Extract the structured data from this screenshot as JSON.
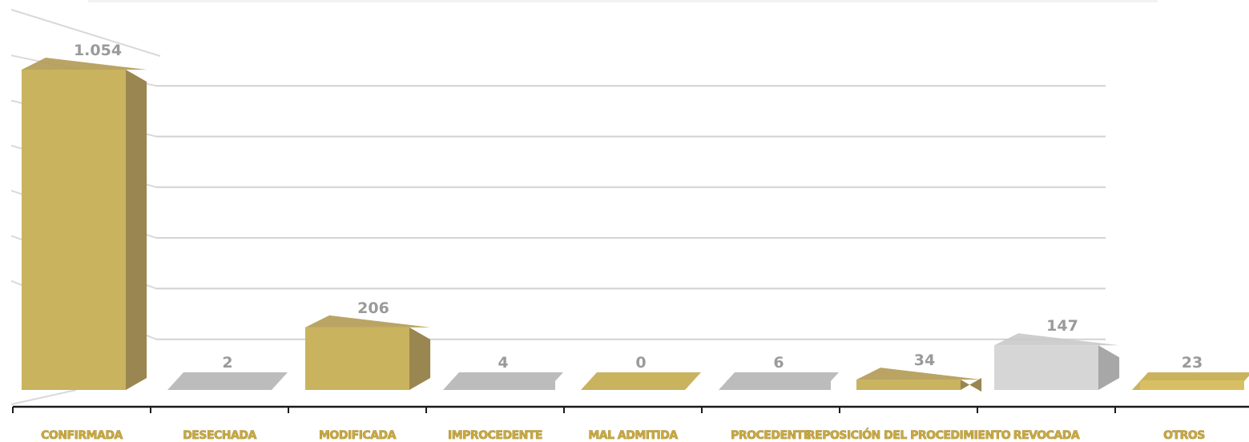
{
  "chart_data": {
    "type": "bar",
    "style": "3d-column",
    "categories": [
      "CONFIRMADA",
      "DESECHADA",
      "MODIFICADA",
      "IMPROCEDENTE",
      "MAL ADMITIDA",
      "PROCEDENTE",
      "REPOSICIÓN DEL PROCEDIMIENTO",
      "REVOCADA",
      "OTROS"
    ],
    "values": [
      1054,
      2,
      206,
      4,
      0,
      6,
      34,
      147,
      23
    ],
    "value_labels": [
      "1.054",
      "2",
      "206",
      "4",
      "0",
      "6",
      "34",
      "147",
      "23"
    ],
    "title": "",
    "xlabel": "",
    "ylabel": "",
    "ylim": [
      0,
      1200
    ],
    "grid": true,
    "legend": "none",
    "colors": {
      "gold": "#c9b35e",
      "gold_side": "#9a8650",
      "gold_top": "#b39a52",
      "gray": "#bcbcbc",
      "gray_light": "#d6d6d6",
      "gray_side": "#a7a7a7",
      "label_gold": "#c9a93f",
      "value_gray": "#9a9a9a"
    },
    "bar_colors": [
      "gold",
      "gray",
      "gold",
      "gray",
      "gold",
      "gray",
      "gold",
      "gray_light",
      "gold"
    ]
  }
}
